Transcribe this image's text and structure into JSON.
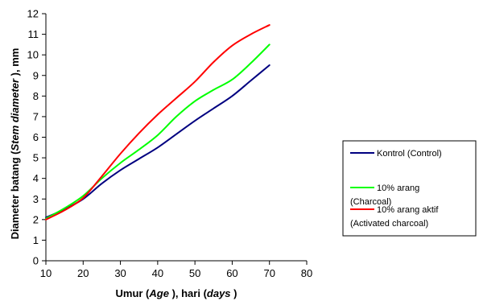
{
  "chart_data": {
    "type": "line",
    "xlabel_parts": [
      {
        "text": "Umur (",
        "italic": false
      },
      {
        "text": "Age",
        "italic": true
      },
      {
        "text": " ), hari (",
        "italic": false
      },
      {
        "text": "days",
        "italic": true
      },
      {
        "text": " )",
        "italic": false
      }
    ],
    "ylabel_parts": [
      {
        "text": "Diameter batang (",
        "italic": false
      },
      {
        "text": "Stem diameter",
        "italic": true
      },
      {
        "text": " ), mm",
        "italic": false
      }
    ],
    "xlim": [
      10,
      80
    ],
    "ylim": [
      0,
      12
    ],
    "xticks": [
      10,
      20,
      30,
      40,
      50,
      60,
      70,
      80
    ],
    "yticks": [
      0,
      1,
      2,
      3,
      4,
      5,
      6,
      7,
      8,
      9,
      10,
      11,
      12
    ],
    "grid": false,
    "legend_position": "right",
    "series": [
      {
        "name_lines": [
          "Kontrol (Control)"
        ],
        "color": "#000080",
        "points": [
          [
            10,
            2.1
          ],
          [
            15,
            2.5
          ],
          [
            20,
            3.0
          ],
          [
            25,
            3.75
          ],
          [
            30,
            4.4
          ],
          [
            35,
            4.95
          ],
          [
            40,
            5.5
          ],
          [
            45,
            6.15
          ],
          [
            50,
            6.8
          ],
          [
            55,
            7.4
          ],
          [
            60,
            8.0
          ],
          [
            65,
            8.75
          ],
          [
            70,
            9.5
          ]
        ]
      },
      {
        "name_lines": [
          "10% arang",
          "(Charcoal)"
        ],
        "color": "#00FF00",
        "points": [
          [
            10,
            2.05
          ],
          [
            15,
            2.55
          ],
          [
            20,
            3.15
          ],
          [
            25,
            4.0
          ],
          [
            30,
            4.75
          ],
          [
            35,
            5.4
          ],
          [
            40,
            6.1
          ],
          [
            45,
            7.0
          ],
          [
            50,
            7.75
          ],
          [
            55,
            8.3
          ],
          [
            60,
            8.8
          ],
          [
            65,
            9.6
          ],
          [
            70,
            10.5
          ]
        ]
      },
      {
        "name_lines": [
          "10% arang aktif",
          "(Activated charcoal)"
        ],
        "color": "#FF0000",
        "points": [
          [
            10,
            2.0
          ],
          [
            15,
            2.45
          ],
          [
            20,
            3.05
          ],
          [
            25,
            4.1
          ],
          [
            30,
            5.2
          ],
          [
            35,
            6.2
          ],
          [
            40,
            7.1
          ],
          [
            45,
            7.9
          ],
          [
            50,
            8.7
          ],
          [
            55,
            9.65
          ],
          [
            60,
            10.45
          ],
          [
            65,
            11.0
          ],
          [
            70,
            11.45
          ]
        ]
      }
    ]
  }
}
